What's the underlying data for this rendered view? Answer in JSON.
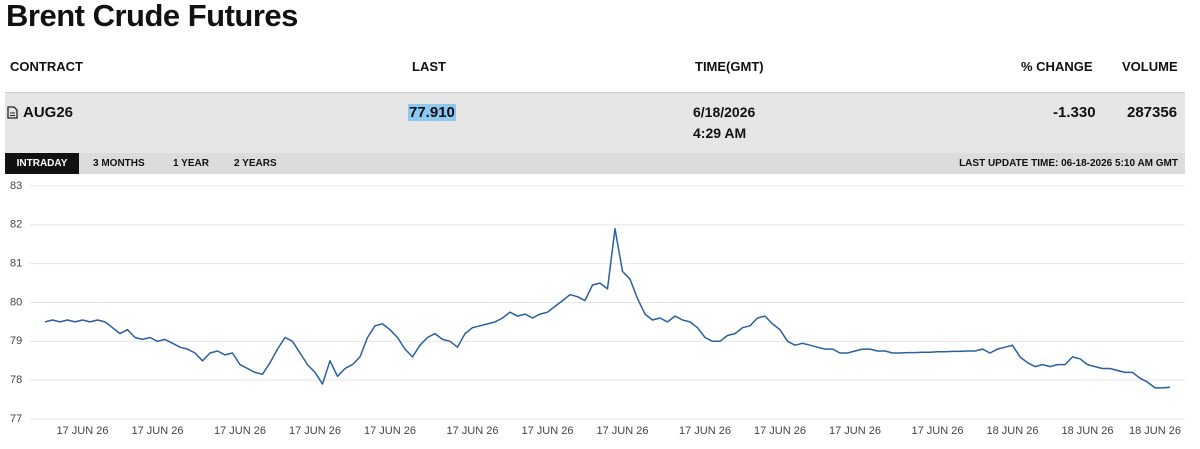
{
  "header": {
    "title": "Brent Crude Futures"
  },
  "table": {
    "columns": [
      "CONTRACT",
      "LAST",
      "TIME(GMT)",
      "% CHANGE",
      "VOLUME"
    ],
    "rows": [
      {
        "contract": "AUG26",
        "last": "77.910",
        "date": "6/18/2026",
        "time": "4:29 AM",
        "change": "-1.330",
        "volume": "287356"
      }
    ]
  },
  "tabs": [
    "INTRADAY",
    "3 MONTHS",
    "1 YEAR",
    "2 YEARS"
  ],
  "last_update": "LAST UPDATE TIME: 06-18-2026 5:10 AM GMT",
  "chart_data": {
    "type": "line",
    "color": "#2a5fa0",
    "grid": true,
    "ylim": [
      77,
      83
    ],
    "yticks": [
      77,
      78,
      79,
      80,
      81,
      82,
      83
    ],
    "categories": [
      null,
      null,
      null,
      null,
      null,
      "17 JUN 26",
      null,
      null,
      null,
      null,
      null,
      null,
      null,
      null,
      null,
      "17 JUN 26",
      null,
      null,
      null,
      null,
      null,
      null,
      null,
      null,
      null,
      null,
      "17 JUN 26",
      null,
      null,
      null,
      null,
      null,
      null,
      null,
      null,
      null,
      "17 JUN 26",
      null,
      null,
      null,
      null,
      null,
      null,
      null,
      null,
      null,
      "17 JUN 26",
      null,
      null,
      null,
      null,
      null,
      null,
      null,
      null,
      null,
      null,
      "17 JUN 26",
      null,
      null,
      null,
      null,
      null,
      null,
      null,
      null,
      null,
      "17 JUN 26",
      null,
      null,
      null,
      null,
      null,
      null,
      null,
      null,
      null,
      "17 JUN 26",
      null,
      null,
      null,
      null,
      null,
      null,
      null,
      null,
      null,
      null,
      "17 JUN 26",
      null,
      null,
      null,
      null,
      null,
      null,
      null,
      null,
      null,
      "17 JUN 26",
      null,
      null,
      null,
      null,
      null,
      null,
      null,
      null,
      null,
      "17 JUN 26",
      null,
      null,
      null,
      null,
      null,
      null,
      null,
      null,
      null,
      null,
      "17 JUN 26",
      null,
      null,
      null,
      null,
      null,
      null,
      null,
      null,
      null,
      "18 JUN 26",
      null,
      null,
      null,
      null,
      null,
      null,
      null,
      null,
      null,
      "18 JUN 26",
      null,
      null,
      null,
      null,
      null,
      null,
      null,
      null,
      "18 JUN 26",
      null,
      null
    ],
    "values": [
      79.5,
      79.55,
      79.5,
      79.55,
      79.5,
      79.55,
      79.5,
      79.55,
      79.5,
      79.35,
      79.2,
      79.3,
      79.1,
      79.05,
      79.1,
      79.0,
      79.05,
      78.95,
      78.85,
      78.8,
      78.7,
      78.5,
      78.7,
      78.75,
      78.65,
      78.7,
      78.4,
      78.3,
      78.2,
      78.15,
      78.45,
      78.8,
      79.1,
      79.0,
      78.7,
      78.4,
      78.2,
      77.9,
      78.5,
      78.1,
      78.3,
      78.4,
      78.6,
      79.1,
      79.4,
      79.45,
      79.3,
      79.1,
      78.8,
      78.6,
      78.9,
      79.1,
      79.2,
      79.05,
      79.0,
      78.85,
      79.2,
      79.35,
      79.4,
      79.45,
      79.5,
      79.6,
      79.75,
      79.65,
      79.7,
      79.6,
      79.7,
      79.75,
      79.9,
      80.05,
      80.2,
      80.15,
      80.05,
      80.45,
      80.5,
      80.35,
      81.9,
      80.8,
      80.6,
      80.1,
      79.7,
      79.55,
      79.6,
      79.5,
      79.65,
      79.55,
      79.5,
      79.35,
      79.1,
      79.0,
      79.0,
      79.15,
      79.2,
      79.35,
      79.4,
      79.6,
      79.65,
      79.45,
      79.3,
      79.0,
      78.9,
      78.95,
      78.9,
      78.85,
      78.8,
      78.8,
      78.7,
      78.7,
      78.75,
      78.8,
      78.8,
      78.75,
      78.75,
      78.7,
      78.7,
      78.71,
      78.71,
      78.72,
      78.72,
      78.73,
      78.73,
      78.74,
      78.74,
      78.75,
      78.75,
      78.8,
      78.7,
      78.8,
      78.85,
      78.9,
      78.6,
      78.45,
      78.35,
      78.4,
      78.35,
      78.4,
      78.4,
      78.6,
      78.55,
      78.4,
      78.35,
      78.3,
      78.3,
      78.25,
      78.2,
      78.2,
      78.05,
      77.95,
      77.8,
      77.8,
      77.82
    ]
  }
}
